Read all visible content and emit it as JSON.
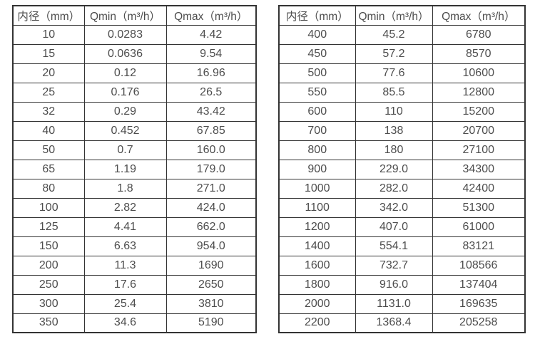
{
  "style": {
    "border_color": "#333333",
    "text_color": "#4d4d4d",
    "background_color": "#ffffff"
  },
  "tables": [
    {
      "name": "flow-rate-table-small-diameters",
      "columns": [
        "内径（mm）",
        "Qmin（m³/h）",
        "Qmax（m³/h）"
      ],
      "rows": [
        [
          "10",
          "0.0283",
          "4.42"
        ],
        [
          "15",
          "0.0636",
          "9.54"
        ],
        [
          "20",
          "0.12",
          "16.96"
        ],
        [
          "25",
          "0.176",
          "26.5"
        ],
        [
          "32",
          "0.29",
          "43.42"
        ],
        [
          "40",
          "0.452",
          "67.85"
        ],
        [
          "50",
          "0.7",
          "160.0"
        ],
        [
          "65",
          "1.19",
          "179.0"
        ],
        [
          "80",
          "1.8",
          "271.0"
        ],
        [
          "100",
          "2.82",
          "424.0"
        ],
        [
          "125",
          "4.41",
          "662.0"
        ],
        [
          "150",
          "6.63",
          "954.0"
        ],
        [
          "200",
          "11.3",
          "1690"
        ],
        [
          "250",
          "17.6",
          "2650"
        ],
        [
          "300",
          "25.4",
          "3810"
        ],
        [
          "350",
          "34.6",
          "5190"
        ]
      ]
    },
    {
      "name": "flow-rate-table-large-diameters",
      "columns": [
        "内径（mm）",
        "Qmin（m³/h）",
        "Qmax（m³/h）"
      ],
      "rows": [
        [
          "400",
          "45.2",
          "6780"
        ],
        [
          "450",
          "57.2",
          "8570"
        ],
        [
          "500",
          "77.6",
          "10600"
        ],
        [
          "550",
          "85.5",
          "12800"
        ],
        [
          "600",
          "110",
          "15200"
        ],
        [
          "700",
          "138",
          "20700"
        ],
        [
          "800",
          "180",
          "27100"
        ],
        [
          "900",
          "229.0",
          "34300"
        ],
        [
          "1000",
          "282.0",
          "42400"
        ],
        [
          "1100",
          "342.0",
          "51300"
        ],
        [
          "1200",
          "407.0",
          "61000"
        ],
        [
          "1400",
          "554.1",
          "83121"
        ],
        [
          "1600",
          "732.7",
          "108566"
        ],
        [
          "1800",
          "916.0",
          "137404"
        ],
        [
          "2000",
          "1131.0",
          "169635"
        ],
        [
          "2200",
          "1368.4",
          "205258"
        ]
      ]
    }
  ]
}
